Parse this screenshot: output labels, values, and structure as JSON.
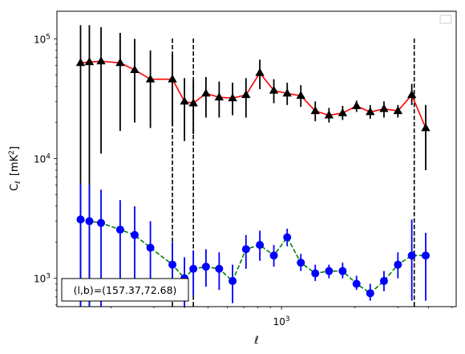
{
  "chart_data": {
    "type": "scatter",
    "xscale": "log",
    "yscale": "log",
    "xlim": [
      120,
      5200
    ],
    "ylim": [
      580,
      170000
    ],
    "xlabel": "ℓ",
    "ylabel_main": "C",
    "ylabel_sub": "ℓ",
    "ylabel_unit_open": "[mK",
    "ylabel_unit_exp": "2",
    "ylabel_unit_close": "]",
    "x_ticks_major": [
      {
        "value": 1000,
        "base": "10",
        "exp": "3"
      }
    ],
    "x_ticks_minor": [
      200,
      300,
      400,
      500,
      600,
      700,
      800,
      900,
      2000,
      3000,
      4000,
      5000
    ],
    "y_ticks_major": [
      {
        "value": 1000,
        "base": "10",
        "exp": "3"
      },
      {
        "value": 10000,
        "base": "10",
        "exp": "4"
      },
      {
        "value": 100000,
        "base": "10",
        "exp": "5"
      }
    ],
    "y_ticks_minor": [
      600,
      700,
      800,
      900,
      2000,
      3000,
      4000,
      5000,
      6000,
      7000,
      8000,
      9000,
      20000,
      30000,
      40000,
      50000,
      60000,
      70000,
      80000,
      90000
    ],
    "vlines": [
      357,
      435,
      3500
    ],
    "series": [
      {
        "marker": "triangle",
        "marker_color": "#000000",
        "line_color": "#ff0000",
        "line_style": "solid",
        "err_color": "#000000",
        "points": [
          {
            "x": 150,
            "y": 63000,
            "lo": 580,
            "hi": 130000
          },
          {
            "x": 163,
            "y": 64000,
            "lo": 580,
            "hi": 130000
          },
          {
            "x": 182,
            "y": 65000,
            "lo": 11000,
            "hi": 125000
          },
          {
            "x": 218,
            "y": 63000,
            "lo": 17000,
            "hi": 112000
          },
          {
            "x": 250,
            "y": 55000,
            "lo": 20000,
            "hi": 100000
          },
          {
            "x": 290,
            "y": 46000,
            "lo": 18000,
            "hi": 80000
          },
          {
            "x": 357,
            "y": 46000,
            "lo": 19000,
            "hi": 75000
          },
          {
            "x": 400,
            "y": 30000,
            "lo": 14000,
            "hi": 47000
          },
          {
            "x": 435,
            "y": 29000,
            "lo": 16000,
            "hi": 45000
          },
          {
            "x": 490,
            "y": 35000,
            "lo": 22000,
            "hi": 48000
          },
          {
            "x": 555,
            "y": 32500,
            "lo": 22000,
            "hi": 44000
          },
          {
            "x": 630,
            "y": 32000,
            "lo": 23000,
            "hi": 43000
          },
          {
            "x": 715,
            "y": 34000,
            "lo": 22000,
            "hi": 47000
          },
          {
            "x": 815,
            "y": 52000,
            "lo": 38000,
            "hi": 67000
          },
          {
            "x": 930,
            "y": 37000,
            "lo": 29000,
            "hi": 46000
          },
          {
            "x": 1055,
            "y": 35000,
            "lo": 28000,
            "hi": 43000
          },
          {
            "x": 1200,
            "y": 33500,
            "lo": 27000,
            "hi": 41000
          },
          {
            "x": 1375,
            "y": 25000,
            "lo": 20500,
            "hi": 30000
          },
          {
            "x": 1565,
            "y": 23000,
            "lo": 20000,
            "hi": 26500
          },
          {
            "x": 1780,
            "y": 24000,
            "lo": 21000,
            "hi": 27500
          },
          {
            "x": 2030,
            "y": 27500,
            "lo": 24500,
            "hi": 30500
          },
          {
            "x": 2310,
            "y": 24500,
            "lo": 21500,
            "hi": 28000
          },
          {
            "x": 2630,
            "y": 26000,
            "lo": 22000,
            "hi": 30000
          },
          {
            "x": 3000,
            "y": 25000,
            "lo": 22000,
            "hi": 28000
          },
          {
            "x": 3420,
            "y": 34000,
            "lo": 28000,
            "hi": 42000
          },
          {
            "x": 3900,
            "y": 18000,
            "lo": 8000,
            "hi": 28000
          }
        ]
      },
      {
        "marker": "circle",
        "marker_color": "#0000ff",
        "line_color": "#008000",
        "line_style": "dashed",
        "err_color": "#0000ff",
        "points": [
          {
            "x": 150,
            "y": 3100,
            "lo": 580,
            "hi": 6200
          },
          {
            "x": 163,
            "y": 3000,
            "lo": 580,
            "hi": 6000
          },
          {
            "x": 182,
            "y": 2900,
            "lo": 580,
            "hi": 5500
          },
          {
            "x": 218,
            "y": 2550,
            "lo": 700,
            "hi": 4500
          },
          {
            "x": 250,
            "y": 2300,
            "lo": 800,
            "hi": 4000
          },
          {
            "x": 290,
            "y": 1800,
            "lo": 650,
            "hi": 3000
          },
          {
            "x": 357,
            "y": 1300,
            "lo": 700,
            "hi": 2000
          },
          {
            "x": 400,
            "y": 1000,
            "lo": 580,
            "hi": 1500
          },
          {
            "x": 435,
            "y": 1200,
            "lo": 720,
            "hi": 1700
          },
          {
            "x": 490,
            "y": 1250,
            "lo": 850,
            "hi": 1750
          },
          {
            "x": 555,
            "y": 1200,
            "lo": 800,
            "hi": 1650
          },
          {
            "x": 630,
            "y": 950,
            "lo": 620,
            "hi": 1300
          },
          {
            "x": 715,
            "y": 1750,
            "lo": 1200,
            "hi": 2300
          },
          {
            "x": 815,
            "y": 1900,
            "lo": 1400,
            "hi": 2500
          },
          {
            "x": 930,
            "y": 1550,
            "lo": 1250,
            "hi": 1900
          },
          {
            "x": 1055,
            "y": 2200,
            "lo": 1850,
            "hi": 2600
          },
          {
            "x": 1200,
            "y": 1350,
            "lo": 1150,
            "hi": 1600
          },
          {
            "x": 1375,
            "y": 1100,
            "lo": 950,
            "hi": 1300
          },
          {
            "x": 1565,
            "y": 1150,
            "lo": 1000,
            "hi": 1300
          },
          {
            "x": 1780,
            "y": 1150,
            "lo": 1000,
            "hi": 1350
          },
          {
            "x": 2030,
            "y": 900,
            "lo": 800,
            "hi": 1050
          },
          {
            "x": 2310,
            "y": 750,
            "lo": 650,
            "hi": 900
          },
          {
            "x": 2630,
            "y": 950,
            "lo": 780,
            "hi": 1150
          },
          {
            "x": 3000,
            "y": 1300,
            "lo": 1000,
            "hi": 1650
          },
          {
            "x": 3420,
            "y": 1550,
            "lo": 650,
            "hi": 3100
          },
          {
            "x": 3900,
            "y": 1550,
            "lo": 650,
            "hi": 2400
          }
        ]
      }
    ],
    "annotation": "(l,b)=(157.37,72.68)",
    "legend": "top-right",
    "grid": false
  }
}
